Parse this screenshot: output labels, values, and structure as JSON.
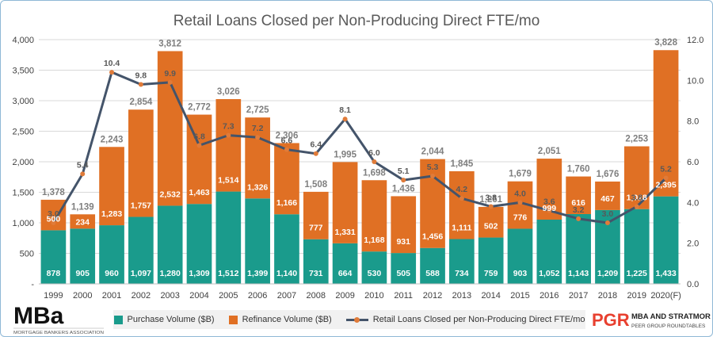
{
  "chart_data": {
    "type": "bar",
    "stacked": true,
    "title": "Retail Loans Closed per Non-Producing Direct FTE/mo",
    "categories": [
      "1999",
      "2000",
      "2001",
      "2002",
      "2003",
      "2004",
      "2005",
      "2006",
      "2007",
      "2008",
      "2009",
      "2010",
      "2011",
      "2012",
      "2013",
      "2014",
      "2015",
      "2016",
      "2017",
      "2018",
      "2019",
      "2020(F)"
    ],
    "series": [
      {
        "name": "Purchase Volume ($B)",
        "type": "bar",
        "axis": "left",
        "color": "#1a9b8c",
        "values": [
          878,
          905,
          960,
          1097,
          1280,
          1309,
          1512,
          1399,
          1140,
          731,
          664,
          530,
          505,
          588,
          734,
          759,
          903,
          1052,
          1143,
          1209,
          1225,
          1433
        ],
        "labels": [
          "878",
          "905",
          "960",
          "1,097",
          "1,280",
          "1,309",
          "1,512",
          "1,399",
          "1,140",
          "731",
          "664",
          "530",
          "505",
          "588",
          "734",
          "759",
          "903",
          "1,052",
          "1,143",
          "1,209",
          "1,225",
          "1,433"
        ]
      },
      {
        "name": "Refinance Volume ($B)",
        "type": "bar",
        "axis": "left",
        "color": "#e07024",
        "values": [
          500,
          234,
          1283,
          1757,
          2532,
          1463,
          1514,
          1326,
          1166,
          777,
          1331,
          1168,
          931,
          1456,
          1111,
          502,
          776,
          999,
          616,
          467,
          1028,
          2395
        ],
        "labels": [
          "500",
          "234",
          "1,283",
          "1,757",
          "2,532",
          "1,463",
          "1,514",
          "1,326",
          "1,166",
          "777",
          "1,331",
          "1,168",
          "931",
          "1,456",
          "1,111",
          "502",
          "776",
          "999",
          "616",
          "467",
          "1,028",
          "2,395"
        ]
      },
      {
        "name": "Retail Loans Closed per Non-Producing Direct FTE/mo",
        "type": "line",
        "axis": "right",
        "color": "#44546a",
        "marker_color": "#e07b39",
        "values": [
          3.0,
          5.4,
          10.4,
          9.8,
          9.9,
          6.8,
          7.3,
          7.2,
          6.6,
          6.4,
          8.1,
          6.0,
          5.1,
          5.3,
          4.2,
          3.8,
          4.0,
          3.6,
          3.2,
          3.0,
          3.8,
          5.2
        ],
        "labels": [
          "3.0",
          "5.4",
          "10.4",
          "9.8",
          "9.9",
          "6.8",
          "7.3",
          "7.2",
          "6.6",
          "6.4",
          "8.1",
          "6.0",
          "5.1",
          "5.3",
          "4.2",
          "3.8",
          "4.0",
          "3.6",
          "3.2",
          "3.0",
          "3.8",
          "5.2"
        ]
      }
    ],
    "totals": [
      1378,
      1139,
      2243,
      2854,
      3812,
      2772,
      3026,
      2725,
      2306,
      1508,
      1995,
      1698,
      1436,
      2044,
      1845,
      1261,
      1679,
      2051,
      1760,
      1676,
      2253,
      3828
    ],
    "total_labels": [
      "1,378",
      "1,139",
      "2,243",
      "2,854",
      "3,812",
      "2,772",
      "3,026",
      "2,725",
      "2,306",
      "1,508",
      "1,995",
      "1,698",
      "1,436",
      "2,044",
      "1,845",
      "1,261",
      "1,679",
      "2,051",
      "1,760",
      "1,676",
      "2,253",
      "3,828"
    ],
    "ylim": [
      0,
      4000
    ],
    "y_ticks": [
      0,
      500,
      1000,
      1500,
      2000,
      2500,
      3000,
      3500,
      4000
    ],
    "y_tick_labels": [
      "-",
      "500",
      "1,000",
      "1,500",
      "2,000",
      "2,500",
      "3,000",
      "3,500",
      "4,000"
    ],
    "y2lim": [
      0,
      12
    ],
    "y2_ticks": [
      0,
      2,
      4,
      6,
      8,
      10,
      12
    ],
    "y2_tick_labels": [
      "0.0",
      "2.0",
      "4.0",
      "6.0",
      "8.0",
      "10.0",
      "12.0"
    ],
    "grid": true,
    "legend_position": "bottom"
  },
  "legend": {
    "purchase": "Purchase Volume ($B)",
    "refinance": "Refinance Volume ($B)",
    "line": "Retail Loans Closed per Non-Producing Direct FTE/mo"
  },
  "logos": {
    "left_mark": "MBa",
    "left_caption": "MORTGAGE BANKERS ASSOCIATION",
    "right_mark": "PGR",
    "right_line1": "MBA AND STRATMOR",
    "right_line2": "PEER GROUP ROUNDTABLES"
  },
  "colors": {
    "purchase": "#1a9b8c",
    "refinance": "#e07024",
    "line": "#44546a",
    "marker": "#e07b39",
    "pgr_red": "#e8402f"
  }
}
